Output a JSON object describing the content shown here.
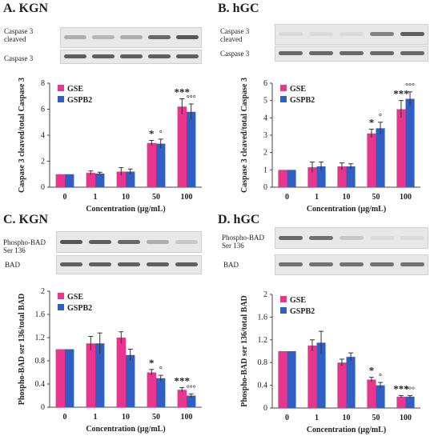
{
  "panels": [
    {
      "id": "A",
      "title": "A. KGN",
      "blots": [
        {
          "label": "Caspase 3 cleaved",
          "intensities": [
            0.35,
            0.3,
            0.35,
            0.75,
            0.85
          ]
        },
        {
          "label": "Caspase 3",
          "intensities": [
            0.8,
            0.8,
            0.8,
            0.8,
            0.8
          ]
        }
      ],
      "chart_data": {
        "type": "bar",
        "categories": [
          "0",
          "1",
          "10",
          "50",
          "100"
        ],
        "series": [
          {
            "name": "GSE",
            "color": "#e8368f",
            "values": [
              1.0,
              1.1,
              1.2,
              3.4,
              6.2
            ],
            "errors": [
              0.0,
              0.15,
              0.3,
              0.2,
              0.6
            ]
          },
          {
            "name": "GSPB2",
            "color": "#2f5fc4",
            "values": [
              1.0,
              1.05,
              1.2,
              3.35,
              5.8
            ],
            "errors": [
              0.0,
              0.1,
              0.2,
              0.35,
              0.6
            ]
          }
        ],
        "ylabel": "Caspase 3 cleaved/total Caspase 3",
        "xlabel": "Concentration (µg/mL)",
        "ylim": [
          0,
          8
        ],
        "yticks": [
          0,
          2,
          4,
          6,
          8
        ],
        "annotations": [
          {
            "text": "*",
            "category": "50",
            "series": "GSE"
          },
          {
            "text": "°",
            "category": "50",
            "series": "GSPB2"
          },
          {
            "text": "***",
            "category": "100",
            "series": "GSE"
          },
          {
            "text": "°°°",
            "category": "100",
            "series": "GSPB2"
          }
        ]
      }
    },
    {
      "id": "B",
      "title": "B. hGC",
      "blots": [
        {
          "label": "Caspase 3 cleaved",
          "intensities": [
            0.1,
            0.1,
            0.1,
            0.6,
            0.8
          ]
        },
        {
          "label": "Caspase 3",
          "intensities": [
            0.75,
            0.75,
            0.75,
            0.75,
            0.75
          ]
        }
      ],
      "chart_data": {
        "type": "bar",
        "categories": [
          "0",
          "1",
          "10",
          "50",
          "100"
        ],
        "series": [
          {
            "name": "GSE",
            "color": "#e8368f",
            "values": [
              1.0,
              1.15,
              1.2,
              3.1,
              4.5
            ],
            "errors": [
              0.0,
              0.3,
              0.2,
              0.25,
              0.5
            ]
          },
          {
            "name": "GSPB2",
            "color": "#2f5fc4",
            "values": [
              1.0,
              1.2,
              1.2,
              3.4,
              5.1
            ],
            "errors": [
              0.0,
              0.25,
              0.15,
              0.35,
              0.4
            ]
          }
        ],
        "ylabel": "Caspase 3 cleaved/total Caspase 3",
        "xlabel": "Concentration (µg/mL)",
        "ylim": [
          0,
          6
        ],
        "yticks": [
          0,
          1,
          2,
          3,
          4,
          5,
          6
        ],
        "annotations": [
          {
            "text": "*",
            "category": "50",
            "series": "GSE"
          },
          {
            "text": "°",
            "category": "50",
            "series": "GSPB2"
          },
          {
            "text": "***",
            "category": "100",
            "series": "GSE"
          },
          {
            "text": "°°°",
            "category": "100",
            "series": "GSPB2"
          }
        ]
      }
    },
    {
      "id": "C",
      "title": "C. KGN",
      "blots": [
        {
          "label": "Phospho-BAD Ser 136",
          "intensities": [
            0.85,
            0.8,
            0.75,
            0.35,
            0.2
          ]
        },
        {
          "label": "BAD",
          "intensities": [
            0.8,
            0.8,
            0.8,
            0.8,
            0.8
          ]
        }
      ],
      "chart_data": {
        "type": "bar",
        "categories": [
          "0",
          "1",
          "10",
          "50",
          "100"
        ],
        "series": [
          {
            "name": "GSE",
            "color": "#e8368f",
            "values": [
              1.0,
              1.1,
              1.2,
              0.6,
              0.3
            ],
            "errors": [
              0.0,
              0.12,
              0.1,
              0.05,
              0.04
            ]
          },
          {
            "name": "GSPB2",
            "color": "#2f5fc4",
            "values": [
              1.0,
              1.1,
              0.9,
              0.5,
              0.2
            ],
            "errors": [
              0.0,
              0.18,
              0.1,
              0.05,
              0.03
            ]
          }
        ],
        "ylabel": "Phospho-BAD ser 136/total BAD",
        "xlabel": "Concentration (µg/mL)",
        "ylim": [
          0,
          2
        ],
        "yticks": [
          0,
          0.4,
          0.8,
          1.2,
          1.6,
          2
        ],
        "annotations": [
          {
            "text": "*",
            "category": "50",
            "series": "GSE"
          },
          {
            "text": "°",
            "category": "50",
            "series": "GSPB2"
          },
          {
            "text": "***",
            "category": "100",
            "series": "GSE"
          },
          {
            "text": "°°°",
            "category": "100",
            "series": "GSPB2"
          }
        ]
      }
    },
    {
      "id": "D",
      "title": "D. hGC",
      "blots": [
        {
          "label": "Phospho-BAD Ser 136",
          "intensities": [
            0.75,
            0.7,
            0.2,
            0.1,
            0.1
          ]
        },
        {
          "label": "BAD",
          "intensities": [
            0.7,
            0.7,
            0.7,
            0.7,
            0.7
          ]
        }
      ],
      "chart_data": {
        "type": "bar",
        "categories": [
          "0",
          "1",
          "10",
          "50",
          "100"
        ],
        "series": [
          {
            "name": "GSE",
            "color": "#e8368f",
            "values": [
              1.0,
              1.1,
              0.8,
              0.5,
              0.2
            ],
            "errors": [
              0.0,
              0.1,
              0.06,
              0.04,
              0.02
            ]
          },
          {
            "name": "GSPB2",
            "color": "#2f5fc4",
            "values": [
              1.0,
              1.15,
              0.9,
              0.4,
              0.2
            ],
            "errors": [
              0.0,
              0.2,
              0.07,
              0.05,
              0.02
            ]
          }
        ],
        "ylabel": "Phospho-BAD ser 136/total BAD",
        "xlabel": "Concentration (µg/mL)",
        "ylim": [
          0,
          2
        ],
        "yticks": [
          0,
          0.4,
          0.8,
          1.2,
          1.6,
          2
        ],
        "annotations": [
          {
            "text": "*",
            "category": "50",
            "series": "GSE"
          },
          {
            "text": "°",
            "category": "50",
            "series": "GSPB2"
          },
          {
            "text": "***",
            "category": "100",
            "series": "GSE"
          },
          {
            "text": "°°°",
            "category": "100",
            "series": "GSPB2"
          }
        ]
      }
    }
  ]
}
